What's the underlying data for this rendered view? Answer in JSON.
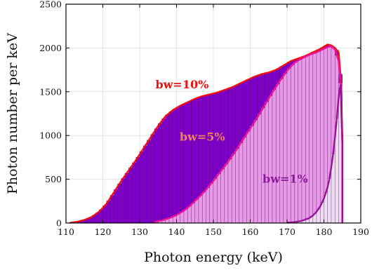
{
  "chart_data": {
    "type": "area",
    "title": "",
    "xlabel": "Photon energy (keV)",
    "ylabel": "Photon number per keV",
    "xlim": [
      110,
      190
    ],
    "ylim": [
      0,
      2500
    ],
    "x_ticks": [
      110,
      120,
      130,
      140,
      150,
      160,
      170,
      180,
      190
    ],
    "y_ticks": [
      0,
      500,
      1000,
      1500,
      2000,
      2500
    ],
    "grid": true,
    "bin_width_keV": 1,
    "series": [
      {
        "label": "bw=10%",
        "color": "#ee1111",
        "fill": "#7f00c8",
        "x": [
          111,
          113,
          115,
          117,
          119,
          121,
          123,
          125,
          127,
          129,
          131,
          133,
          135,
          137,
          139,
          141,
          143,
          145,
          147,
          149,
          151,
          153,
          155,
          157,
          159,
          161,
          163,
          165,
          167,
          169,
          171,
          173,
          175,
          177,
          179,
          181,
          182,
          183,
          184,
          184.5,
          185
        ],
        "y": [
          2,
          15,
          35,
          70,
          130,
          220,
          350,
          480,
          600,
          720,
          850,
          980,
          1110,
          1220,
          1290,
          1340,
          1380,
          1420,
          1450,
          1470,
          1490,
          1520,
          1550,
          1590,
          1630,
          1670,
          1700,
          1720,
          1750,
          1800,
          1850,
          1880,
          1910,
          1950,
          1990,
          2040,
          2030,
          2000,
          1950,
          1700,
          1000
        ]
      },
      {
        "label": "bw=5%",
        "color": "#ee1199",
        "fill": "#e89ae8",
        "x": [
          134,
          136,
          138,
          140,
          142,
          144,
          146,
          148,
          150,
          152,
          154,
          156,
          158,
          160,
          162,
          164,
          166,
          168,
          170,
          172,
          174,
          176,
          178,
          180,
          181,
          182,
          183,
          184,
          184.5,
          185
        ],
        "y": [
          10,
          30,
          55,
          90,
          140,
          210,
          290,
          380,
          480,
          590,
          700,
          820,
          950,
          1080,
          1210,
          1350,
          1490,
          1620,
          1740,
          1830,
          1880,
          1920,
          1950,
          1990,
          2010,
          2020,
          1980,
          1850,
          1600,
          900
        ]
      },
      {
        "label": "bw=1%",
        "color": "#991199",
        "fill": "#eeddf2",
        "x": [
          170,
          172,
          174,
          176,
          177,
          178,
          179,
          180,
          181,
          181.5,
          182,
          182.5,
          183,
          183.5,
          184,
          184.3,
          184.6,
          185
        ],
        "y": [
          3,
          10,
          25,
          55,
          85,
          130,
          190,
          280,
          410,
          510,
          640,
          790,
          980,
          1200,
          1430,
          1540,
          1580,
          900
        ]
      }
    ],
    "annotations": [
      {
        "text": "bw=10%",
        "x": 141.5,
        "y": 1540,
        "color": "#ee1111"
      },
      {
        "text": "bw=5%",
        "x": 147,
        "y": 940,
        "color": "#f08060"
      },
      {
        "text": "bw=1%",
        "x": 169.5,
        "y": 460,
        "color": "#8a1a9a"
      }
    ]
  }
}
